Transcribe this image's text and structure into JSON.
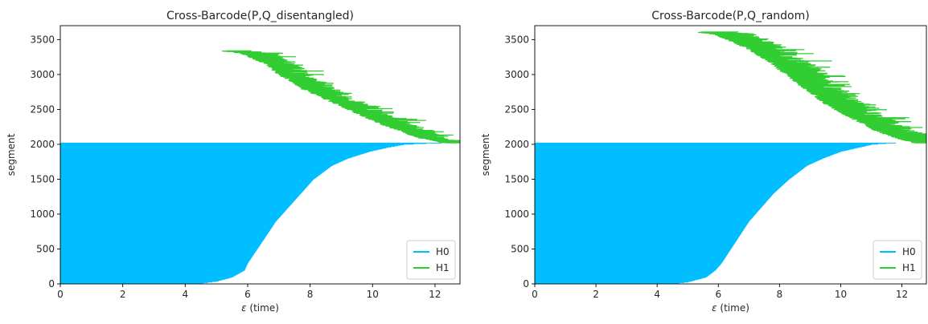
{
  "chart_data": [
    {
      "type": "barcode",
      "title": "Cross-Barcode(P,Q_disentangled)",
      "xlabel": "ε (time)",
      "ylabel": "segment",
      "xlim": [
        0,
        12.8
      ],
      "ylim": [
        0,
        3700
      ],
      "xticks": [
        0,
        2,
        4,
        6,
        8,
        10,
        12
      ],
      "yticks": [
        0,
        500,
        1000,
        1500,
        2000,
        2500,
        3000,
        3500
      ],
      "legend_position": "lower right",
      "grid": false,
      "series": [
        {
          "name": "H0",
          "color": "#00bfff",
          "segment_range": [
            0,
            2020
          ],
          "birth": 0,
          "death_profile": [
            [
              0,
              4.3
            ],
            [
              40,
              5.0
            ],
            [
              100,
              5.5
            ],
            [
              200,
              5.9
            ],
            [
              300,
              6.0
            ],
            [
              500,
              6.3
            ],
            [
              700,
              6.6
            ],
            [
              900,
              6.9
            ],
            [
              1100,
              7.3
            ],
            [
              1300,
              7.7
            ],
            [
              1500,
              8.1
            ],
            [
              1700,
              8.7
            ],
            [
              1800,
              9.2
            ],
            [
              1900,
              9.9
            ],
            [
              1960,
              10.5
            ],
            [
              2000,
              11.0
            ],
            [
              2015,
              11.6
            ],
            [
              2020,
              12.2
            ]
          ]
        },
        {
          "name": "H1",
          "color": "#32cd32",
          "segment_range": [
            2020,
            3340
          ],
          "birth_profile": [
            [
              2020,
              12.5
            ],
            [
              2100,
              11.6
            ],
            [
              2200,
              11.0
            ],
            [
              2300,
              10.4
            ],
            [
              2400,
              9.9
            ],
            [
              2500,
              9.4
            ],
            [
              2600,
              8.9
            ],
            [
              2700,
              8.4
            ],
            [
              2800,
              7.9
            ],
            [
              2900,
              7.6
            ],
            [
              3000,
              7.2
            ],
            [
              3100,
              6.9
            ],
            [
              3200,
              6.5
            ],
            [
              3300,
              6.0
            ],
            [
              3340,
              5.3
            ]
          ],
          "length_mean": 0.7
        }
      ]
    },
    {
      "type": "barcode",
      "title": "Cross-Barcode(P,Q_random)",
      "xlabel": "ε (time)",
      "ylabel": "segment",
      "xlim": [
        0,
        12.8
      ],
      "ylim": [
        0,
        3700
      ],
      "xticks": [
        0,
        2,
        4,
        6,
        8,
        10,
        12
      ],
      "yticks": [
        0,
        500,
        1000,
        1500,
        2000,
        2500,
        3000,
        3500
      ],
      "legend_position": "lower right",
      "grid": false,
      "series": [
        {
          "name": "H0",
          "color": "#00bfff",
          "segment_range": [
            0,
            2020
          ],
          "birth": 0,
          "death_profile": [
            [
              0,
              4.4
            ],
            [
              30,
              5.0
            ],
            [
              100,
              5.6
            ],
            [
              200,
              5.9
            ],
            [
              300,
              6.1
            ],
            [
              500,
              6.4
            ],
            [
              700,
              6.7
            ],
            [
              900,
              7.0
            ],
            [
              1100,
              7.4
            ],
            [
              1300,
              7.8
            ],
            [
              1500,
              8.3
            ],
            [
              1700,
              8.9
            ],
            [
              1800,
              9.4
            ],
            [
              1900,
              10.0
            ],
            [
              1960,
              10.6
            ],
            [
              2000,
              11.0
            ],
            [
              2015,
              11.4
            ],
            [
              2020,
              11.8
            ]
          ]
        },
        {
          "name": "H1",
          "color": "#32cd32",
          "segment_range": [
            2020,
            3610
          ],
          "birth_profile": [
            [
              2020,
              12.6
            ],
            [
              2100,
              11.9
            ],
            [
              2200,
              11.3
            ],
            [
              2300,
              10.9
            ],
            [
              2400,
              10.4
            ],
            [
              2600,
              9.6
            ],
            [
              2800,
              9.0
            ],
            [
              3000,
              8.4
            ],
            [
              3200,
              7.8
            ],
            [
              3400,
              7.0
            ],
            [
              3500,
              6.5
            ],
            [
              3580,
              6.0
            ],
            [
              3610,
              5.4
            ]
          ],
          "length_mean": 0.9
        }
      ]
    }
  ]
}
